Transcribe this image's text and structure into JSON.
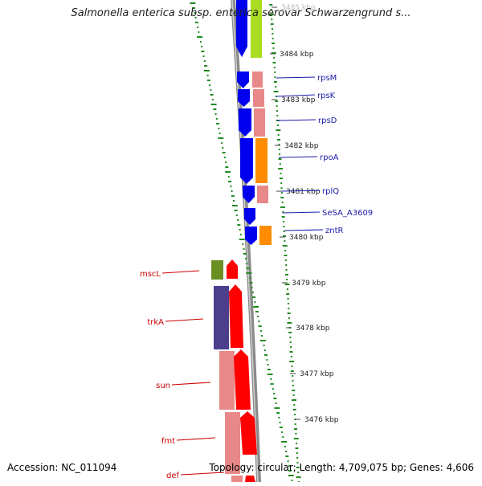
{
  "title": "Salmonella enterica subsp. enterica serovar Schwarzengrund s...",
  "footer": {
    "accession": "Accession: NC_011094",
    "summary": "Topology: circular; Length: 4,709,075 bp; Genes: 4,606"
  },
  "scale_labels": [
    "3485 kbp",
    "3484 kbp",
    "3483 kbp",
    "3482 kbp",
    "3481 kbp",
    "3480 kbp",
    "3479 kbp",
    "3478 kbp",
    "3477 kbp",
    "3476 kbp"
  ],
  "forward_genes": [
    "rpsM",
    "rpsK",
    "rpsD",
    "rpoA",
    "rplQ",
    "SeSA_A3609",
    "zntR"
  ],
  "reverse_genes": [
    "mscL",
    "trkA",
    "sun",
    "fmt",
    "def"
  ],
  "colors": {
    "forward_cds": "#0000ee",
    "reverse_cds": "#ff0000",
    "forward_label": "#1a1aaa",
    "reverse_label": "#cc0000",
    "ribosomal": "#e88888",
    "rna_polymerase": "#ff8c00",
    "green_category": "#aadd22",
    "olive_category": "#6b8e23",
    "purple_category": "#4b3f8c",
    "backbone": "#888888",
    "gc_ticks": "#228b22"
  }
}
